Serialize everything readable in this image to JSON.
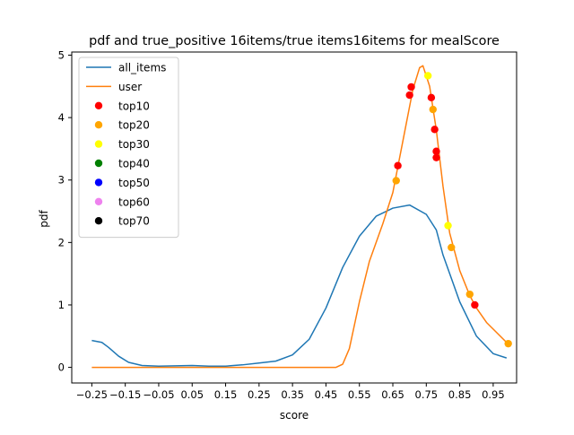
{
  "chart_data": {
    "type": "line",
    "title": "pdf and true_positive 16items/true items16items for mealScore",
    "xlabel": "score",
    "ylabel": "pdf",
    "xlim": [
      -0.31,
      1.02
    ],
    "ylim": [
      -0.25,
      5.05
    ],
    "x_ticks": [
      -0.25,
      -0.15,
      -0.05,
      0.05,
      0.15,
      0.25,
      0.35,
      0.45,
      0.55,
      0.65,
      0.75,
      0.85,
      0.95
    ],
    "x_tick_labels": [
      "−0.25",
      "−0.15",
      "−0.05",
      "0.05",
      "0.15",
      "0.25",
      "0.35",
      "0.45",
      "0.55",
      "0.65",
      "0.75",
      "0.85",
      "0.95"
    ],
    "y_ticks": [
      0,
      1,
      2,
      3,
      4,
      5
    ],
    "y_tick_labels": [
      "0",
      "1",
      "2",
      "3",
      "4",
      "5"
    ],
    "grid": false,
    "legend_position": "top-left",
    "series": [
      {
        "name": "all_items",
        "kind": "line",
        "color": "#1f77b4",
        "points": [
          [
            -0.25,
            0.43
          ],
          [
            -0.22,
            0.4
          ],
          [
            -0.2,
            0.32
          ],
          [
            -0.17,
            0.18
          ],
          [
            -0.14,
            0.08
          ],
          [
            -0.1,
            0.03
          ],
          [
            -0.05,
            0.02
          ],
          [
            0.0,
            0.025
          ],
          [
            0.05,
            0.03
          ],
          [
            0.1,
            0.02
          ],
          [
            0.15,
            0.02
          ],
          [
            0.2,
            0.04
          ],
          [
            0.25,
            0.07
          ],
          [
            0.3,
            0.1
          ],
          [
            0.35,
            0.2
          ],
          [
            0.4,
            0.45
          ],
          [
            0.45,
            0.95
          ],
          [
            0.5,
            1.6
          ],
          [
            0.55,
            2.1
          ],
          [
            0.6,
            2.42
          ],
          [
            0.65,
            2.55
          ],
          [
            0.7,
            2.6
          ],
          [
            0.75,
            2.45
          ],
          [
            0.78,
            2.2
          ],
          [
            0.8,
            1.8
          ],
          [
            0.85,
            1.05
          ],
          [
            0.9,
            0.5
          ],
          [
            0.95,
            0.22
          ],
          [
            0.99,
            0.15
          ]
        ]
      },
      {
        "name": "user",
        "kind": "line",
        "color": "#ff7f0e",
        "points": [
          [
            -0.25,
            0.0
          ],
          [
            0.0,
            0.0
          ],
          [
            0.2,
            0.0
          ],
          [
            0.4,
            0.0
          ],
          [
            0.48,
            0.0
          ],
          [
            0.5,
            0.05
          ],
          [
            0.52,
            0.3
          ],
          [
            0.55,
            1.05
          ],
          [
            0.58,
            1.7
          ],
          [
            0.62,
            2.3
          ],
          [
            0.65,
            2.8
          ],
          [
            0.67,
            3.35
          ],
          [
            0.69,
            3.9
          ],
          [
            0.71,
            4.45
          ],
          [
            0.73,
            4.8
          ],
          [
            0.74,
            4.83
          ],
          [
            0.76,
            4.5
          ],
          [
            0.78,
            3.8
          ],
          [
            0.8,
            2.9
          ],
          [
            0.82,
            2.15
          ],
          [
            0.85,
            1.55
          ],
          [
            0.88,
            1.15
          ],
          [
            0.9,
            0.95
          ],
          [
            0.93,
            0.72
          ],
          [
            0.96,
            0.56
          ],
          [
            0.99,
            0.4
          ]
        ]
      },
      {
        "name": "top10",
        "kind": "scatter",
        "color": "#ff0000",
        "points": [
          [
            0.665,
            3.23
          ],
          [
            0.7,
            4.36
          ],
          [
            0.705,
            4.49
          ],
          [
            0.765,
            4.32
          ],
          [
            0.775,
            3.81
          ],
          [
            0.78,
            3.46
          ],
          [
            0.78,
            3.36
          ],
          [
            0.895,
            1.0
          ]
        ]
      },
      {
        "name": "top20",
        "kind": "scatter",
        "color": "#ffa500",
        "points": [
          [
            0.66,
            2.99
          ],
          [
            0.77,
            4.13
          ],
          [
            0.825,
            1.92
          ],
          [
            0.88,
            1.17
          ],
          [
            0.995,
            0.38
          ]
        ]
      },
      {
        "name": "top30",
        "kind": "scatter",
        "color": "#ffff00",
        "points": [
          [
            0.755,
            4.67
          ],
          [
            0.815,
            2.27
          ]
        ]
      },
      {
        "name": "top40",
        "kind": "scatter",
        "color": "#008000",
        "points": []
      },
      {
        "name": "top50",
        "kind": "scatter",
        "color": "#0000ff",
        "points": []
      },
      {
        "name": "top60",
        "kind": "scatter",
        "color": "#ee82ee",
        "points": []
      },
      {
        "name": "top70",
        "kind": "scatter",
        "color": "#000000",
        "points": []
      }
    ]
  }
}
